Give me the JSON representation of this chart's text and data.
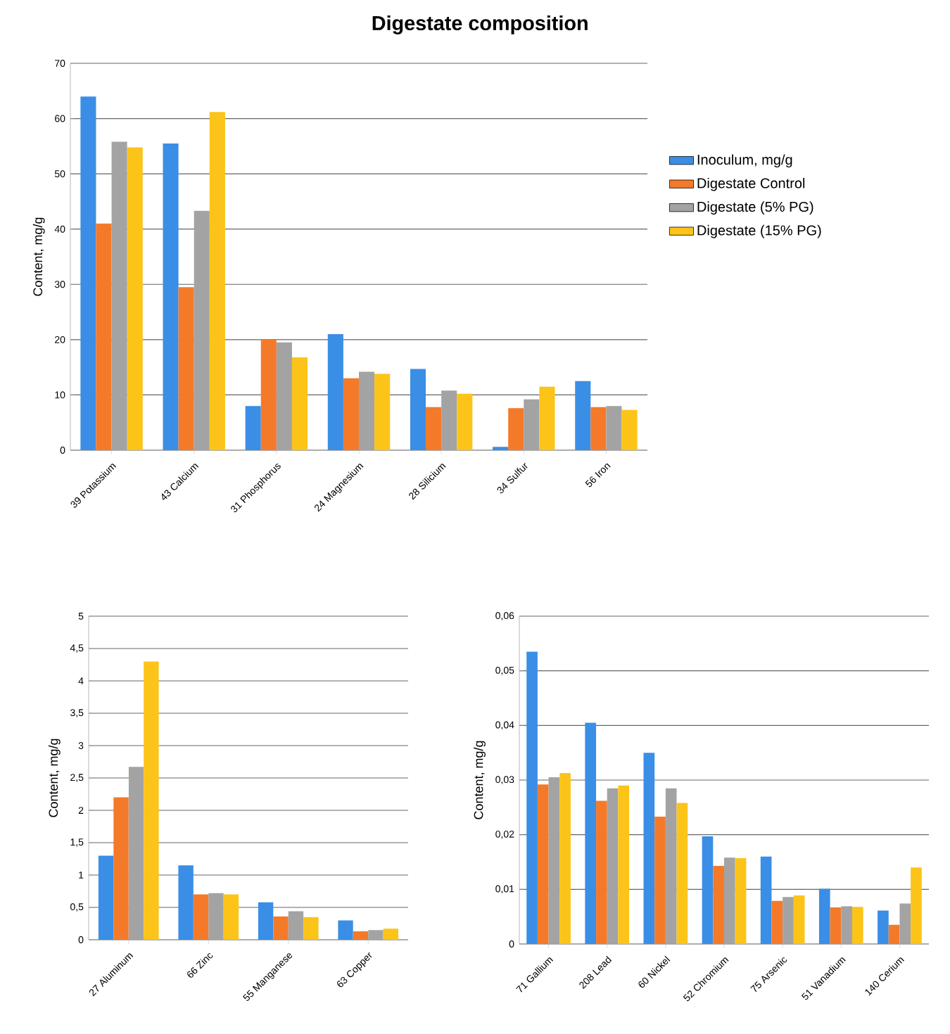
{
  "chart_data": [
    {
      "type": "bar",
      "title": "Digestate composition",
      "ylabel": "Content, mg/g",
      "categories": [
        "39 Potassium",
        "43 Calcium",
        "31 Phosphorus",
        "24 Magnesium",
        "28 Silicium",
        "34 Sulfur",
        "56  Iron"
      ],
      "series": [
        {
          "name": "Inoculum, mg/g",
          "color": "#3a8ee6",
          "values": [
            64,
            55.5,
            8,
            21,
            14.7,
            0.6,
            12.5
          ]
        },
        {
          "name": "Digestate Control",
          "color": "#f47a2a",
          "values": [
            41,
            29.5,
            20,
            13,
            7.8,
            7.6,
            7.8
          ]
        },
        {
          "name": "Digestate (5% PG)",
          "color": "#a3a3a3",
          "values": [
            55.8,
            43.3,
            19.5,
            14.2,
            10.8,
            9.2,
            8
          ]
        },
        {
          "name": "Digestate (15% PG)",
          "color": "#fcc419",
          "values": [
            54.8,
            61.2,
            16.8,
            13.8,
            10.2,
            11.5,
            7.3
          ]
        }
      ],
      "ylim": [
        0,
        70
      ],
      "yticks": [
        0,
        10,
        20,
        30,
        40,
        50,
        60,
        70
      ],
      "grid": "y",
      "legend": "right"
    },
    {
      "type": "bar",
      "ylabel": "Content, mg/g",
      "categories": [
        "27 Aluminum",
        "66  Zinc",
        "55 Manganese",
        "63 Copper"
      ],
      "series": [
        {
          "color": "#3a8ee6",
          "values": [
            1.3,
            1.15,
            0.58,
            0.3
          ]
        },
        {
          "color": "#f47a2a",
          "values": [
            2.2,
            0.7,
            0.36,
            0.13
          ]
        },
        {
          "color": "#a3a3a3",
          "values": [
            2.67,
            0.72,
            0.44,
            0.15
          ]
        },
        {
          "color": "#fcc419",
          "values": [
            4.3,
            0.7,
            0.35,
            0.17
          ]
        }
      ],
      "ylim": [
        0,
        5
      ],
      "yticks": [
        0,
        {
          "value": 0.5,
          "label": "0,5"
        },
        1,
        {
          "value": 1.5,
          "label": "1,5"
        },
        2,
        {
          "value": 2.5,
          "label": "2,5"
        },
        3,
        {
          "value": 3.5,
          "label": "3,5"
        },
        4,
        {
          "value": 4.5,
          "label": "4,5"
        },
        5
      ],
      "grid": "y"
    },
    {
      "type": "bar",
      "ylabel": "Content, mg/g",
      "categories": [
        "71  Gallium",
        "208 Lead",
        "60  Nickel",
        "52 Chromium",
        "75 Arsenic",
        "51 Vanadium",
        "140 Cerium"
      ],
      "series": [
        {
          "color": "#3a8ee6",
          "values": [
            0.0535,
            0.0405,
            0.035,
            0.0197,
            0.016,
            0.0101,
            0.0061
          ]
        },
        {
          "color": "#f47a2a",
          "values": [
            0.0292,
            0.0262,
            0.0233,
            0.0143,
            0.0079,
            0.0067,
            0.0035
          ]
        },
        {
          "color": "#a3a3a3",
          "values": [
            0.0305,
            0.0285,
            0.0285,
            0.0158,
            0.0086,
            0.0069,
            0.0074
          ]
        },
        {
          "color": "#fcc419",
          "values": [
            0.0313,
            0.029,
            0.0258,
            0.0157,
            0.0089,
            0.0068,
            0.014
          ]
        }
      ],
      "ylim": [
        0,
        0.06
      ],
      "yticks": [
        0,
        {
          "value": 0.01,
          "label": "0,01"
        },
        {
          "value": 0.02,
          "label": "0,02"
        },
        {
          "value": 0.03,
          "label": "0,03"
        },
        {
          "value": 0.04,
          "label": "0,04"
        },
        {
          "value": 0.05,
          "label": "0,05"
        },
        {
          "value": 0.06,
          "label": "0,06"
        }
      ],
      "grid": "y"
    }
  ]
}
